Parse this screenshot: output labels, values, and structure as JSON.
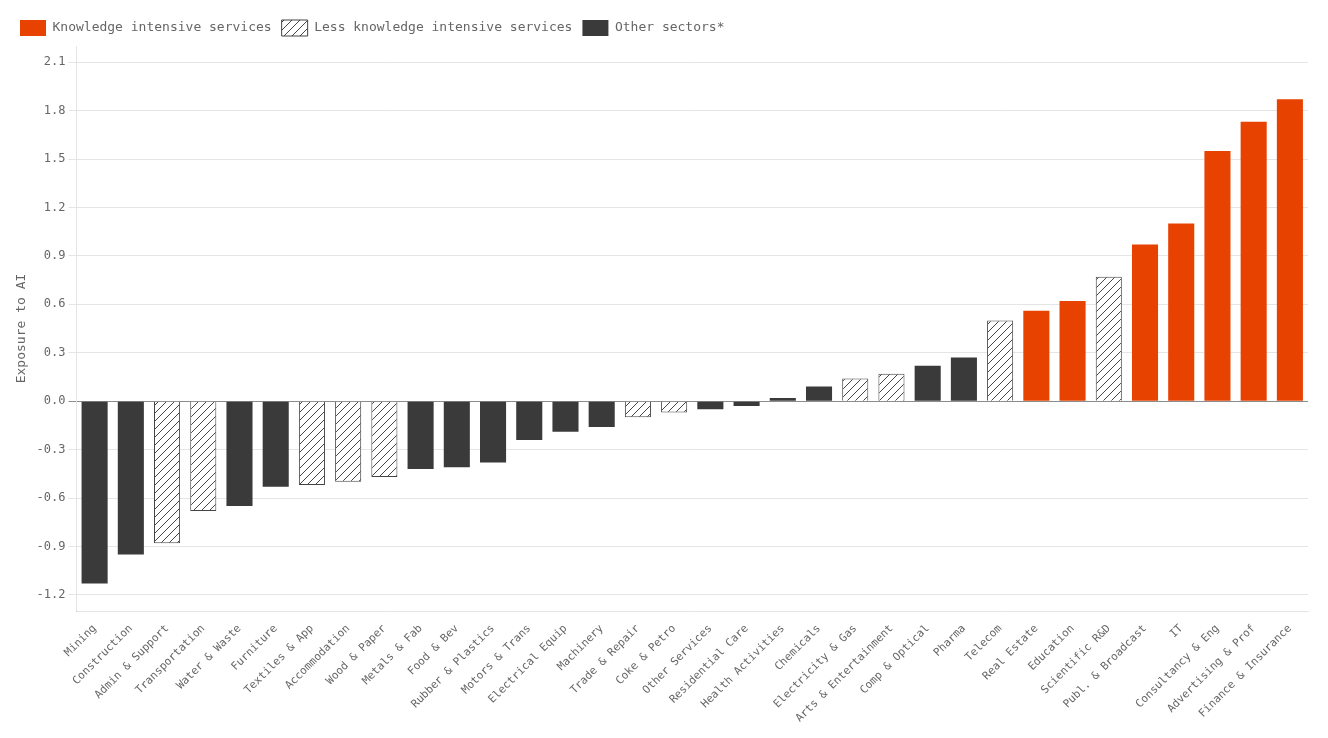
{
  "chart_data": {
    "type": "bar",
    "categories": [
      "Mining",
      "Construction",
      "Admin & Support",
      "Transportation",
      "Water & Waste",
      "Furniture",
      "Textiles & App",
      "Accommodation",
      "Wood & Paper",
      "Metals & Fab",
      "Food & Bev",
      "Rubber & Plastics",
      "Motors & Trans",
      "Electrical Equip",
      "Machinery",
      "Trade & Repair",
      "Coke & Petro",
      "Other Services",
      "Residential Care",
      "Health Activities",
      "Chemicals",
      "Electricity & Gas",
      "Arts & Entertainment",
      "Comp & Optical",
      "Pharma",
      "Telecom",
      "Real Estate",
      "Education",
      "Scientific R&D",
      "Publ. & Broadcast",
      "IT",
      "Consultancy & Eng",
      "Advertising & Prof",
      "Finance & Insurance"
    ],
    "series": [
      {
        "name": "Knowledge intensive services",
        "color": "#E84200",
        "values": [
          null,
          null,
          null,
          null,
          null,
          null,
          null,
          null,
          null,
          null,
          null,
          null,
          null,
          null,
          null,
          null,
          null,
          null,
          null,
          null,
          null,
          null,
          null,
          null,
          null,
          null,
          0.56,
          0.62,
          null,
          0.97,
          1.1,
          1.55,
          1.73,
          1.87
        ]
      },
      {
        "name": "Less knowledge intensive services",
        "color": "#444444",
        "marker": "hatch",
        "values": [
          null,
          null,
          -0.88,
          -0.68,
          null,
          null,
          -0.52,
          -0.5,
          -0.47,
          null,
          null,
          null,
          null,
          null,
          null,
          -0.1,
          -0.07,
          null,
          null,
          null,
          null,
          0.14,
          0.17,
          null,
          null,
          0.5,
          null,
          null,
          0.77,
          null,
          null,
          null,
          null,
          null
        ]
      },
      {
        "name": "Other sectors*",
        "color": "#3a3a3a",
        "values": [
          -1.13,
          -0.95,
          null,
          null,
          -0.65,
          -0.53,
          null,
          null,
          null,
          -0.42,
          -0.41,
          -0.38,
          -0.24,
          -0.19,
          -0.16,
          null,
          null,
          -0.05,
          -0.03,
          0.02,
          0.09,
          null,
          null,
          0.22,
          0.27,
          null,
          null,
          null,
          null,
          null,
          null,
          null,
          null,
          null
        ]
      }
    ],
    "ylabel": "Exposure to AI",
    "ylim": [
      -1.3,
      2.2
    ],
    "yticks": [
      -1.2,
      -0.9,
      -0.6,
      -0.3,
      {
        "value": 0,
        "label": "0.0"
      },
      0.3,
      0.6,
      0.9,
      1.2,
      1.5,
      1.8,
      2.1
    ],
    "grid": "y",
    "legend": "upper left"
  }
}
